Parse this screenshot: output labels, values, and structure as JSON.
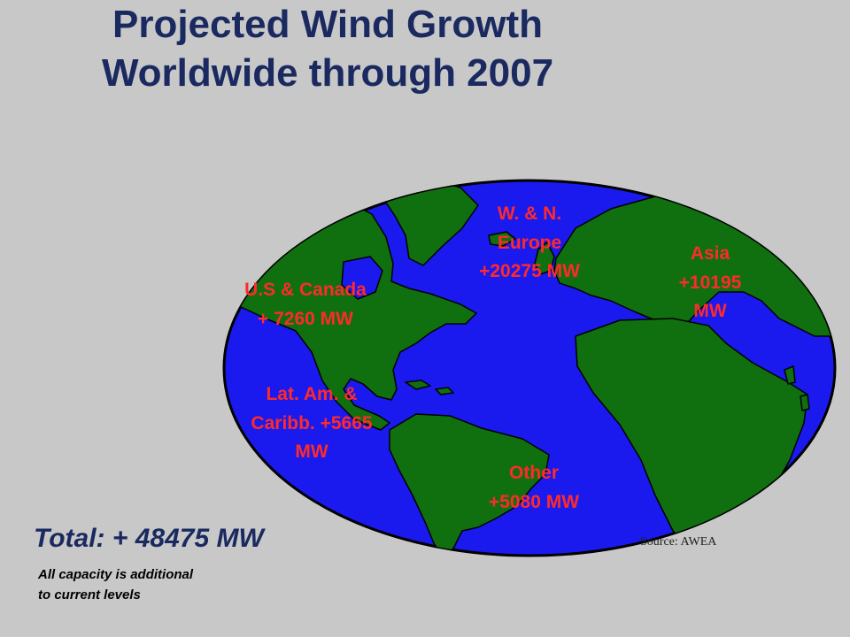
{
  "title": {
    "line1": "Projected Wind Growth",
    "line2": "Worldwide through 2007"
  },
  "regions": [
    {
      "id": "us-canada",
      "lines": [
        "U.S & Canada",
        "+ 7260 MW"
      ],
      "capacity_mw": 7260
    },
    {
      "id": "europe",
      "lines": [
        "W. & N.",
        "Europe",
        "+20275 MW"
      ],
      "capacity_mw": 20275
    },
    {
      "id": "asia",
      "lines": [
        "Asia",
        "+10195",
        "MW"
      ],
      "capacity_mw": 10195
    },
    {
      "id": "latam",
      "lines": [
        "Lat. Am. &",
        "Caribb. +5665",
        "MW"
      ],
      "capacity_mw": 5665
    },
    {
      "id": "other",
      "lines": [
        "Other",
        "+5080 MW"
      ],
      "capacity_mw": 5080
    }
  ],
  "total": "Total: + 48475 MW",
  "note": {
    "line1": "All capacity is additional",
    "line2": "to current levels"
  },
  "source": "Source: AWEA",
  "colors": {
    "background": "#c8c8c8",
    "ocean": "#1a1aee",
    "land": "#107010",
    "label": "#ff2a2a",
    "title": "#1a2a60"
  }
}
